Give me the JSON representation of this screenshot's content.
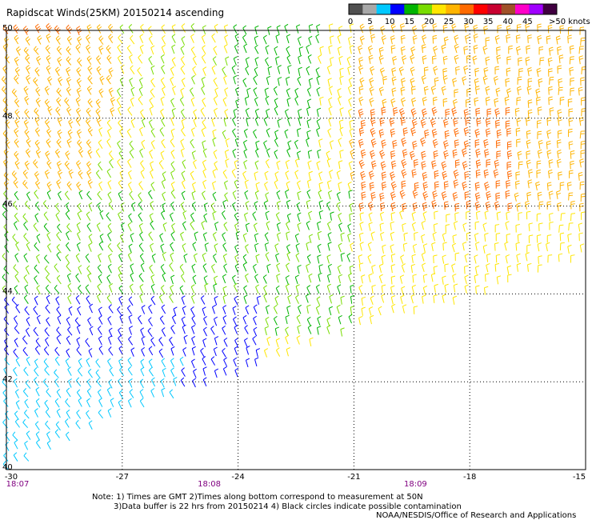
{
  "title": "Rapidscat Winds(25KM) 20150214 ascending",
  "map": {
    "lat_range": [
      40,
      50
    ],
    "lon_range": [
      -30,
      -15
    ],
    "lat_ticks": [
      "50",
      "48",
      "46",
      "44",
      "42",
      "40"
    ],
    "lon_ticks": [
      "-30",
      "-27",
      "-24",
      "-21",
      "-18",
      "-15"
    ],
    "time_labels": [
      "18:07",
      "18:08",
      "18:09"
    ],
    "grid": "dotted"
  },
  "legend": {
    "labels": [
      "0",
      "5",
      "10",
      "15",
      "20",
      "25",
      "30",
      "35",
      "40",
      "45",
      ">50 knots"
    ],
    "colors": [
      "#505050",
      "#a8a8a8",
      "#00c8ff",
      "#0000ff",
      "#00b400",
      "#78dc00",
      "#ffe600",
      "#ffb400",
      "#ff6a00",
      "#ff0000",
      "#c80030",
      "#a05028",
      "#ff00c8",
      "#a000ff",
      "#400040"
    ]
  },
  "notes": {
    "line1": "Note: 1) Times are GMT 2)Times along bottom correspond to measurement at 50N",
    "line2": "3)Data buffer is 22 hrs from 20150214 4) Black circles indicate possible contamination",
    "line3": "NOAA/NESDIS/Office of Research and Applications"
  }
}
